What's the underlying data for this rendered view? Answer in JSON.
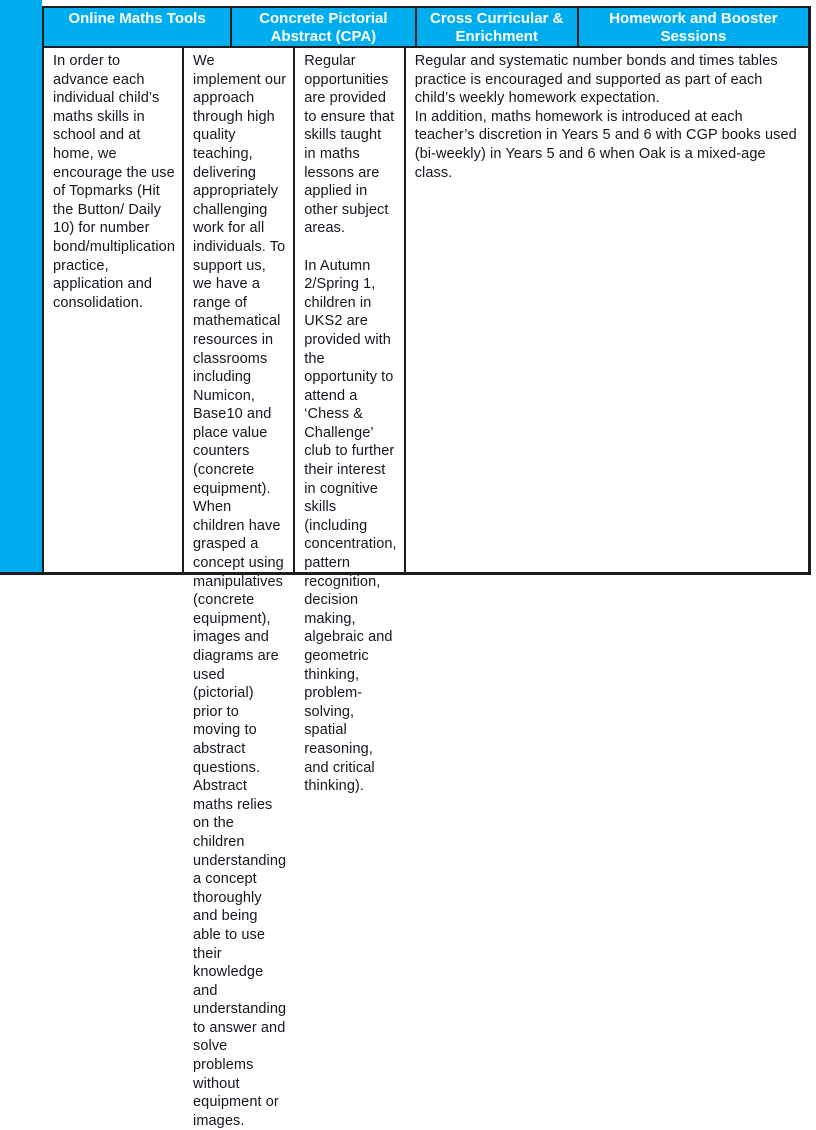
{
  "page": {
    "accent_color": "#00aef0",
    "border_color": "#1d1d20",
    "header_text_color": "#ffffff",
    "body_text_color": "#16161f"
  },
  "table": {
    "columns": [
      {
        "header": "Online Maths Tools",
        "paragraphs": [
          "In order to advance each individual child’s maths skills in school and at home, we encourage the use of Topmarks (Hit the Button/ Daily 10) for number bond/multiplication practice, application and consolidation."
        ]
      },
      {
        "header": "Concrete Pictorial Abstract (CPA)",
        "paragraphs": [
          "We implement our approach through high quality teaching, delivering appropriately challenging work for all individuals. To support us, we have a range of mathematical resources in classrooms including Numicon, Base10 and place value counters (concrete equipment). When children have grasped a concept using manipulatives (concrete equipment), images and diagrams are used (pictorial) prior to moving to abstract questions. Abstract maths relies on the children understanding a concept thoroughly and being able to use their knowledge and understanding to answer and solve problems without equipment or images."
        ]
      },
      {
        "header": "Cross Curricular & Enrichment",
        "paragraphs": [
          "Regular opportunities are provided to ensure that skills taught in maths lessons are applied in other subject areas.",
          "In Autumn 2/Spring 1, children in UKS2 are provided with the opportunity to attend a ‘Chess & Challenge’ club to further their interest in cognitive skills (including concentration, pattern recognition, decision making, algebraic and geometric thinking, problem-solving, spatial reasoning, and critical thinking)."
        ]
      },
      {
        "header": "Homework and Booster Sessions",
        "paragraphs": [
          "Regular and systematic number bonds and times tables practice is encouraged and supported as part of each child’s weekly homework expectation.",
          "In addition, maths homework is introduced at each teacher’s discretion in Years 5 and 6 with CGP books used (bi-weekly) in Years 5 and 6 when Oak is a mixed-age class."
        ]
      }
    ]
  }
}
